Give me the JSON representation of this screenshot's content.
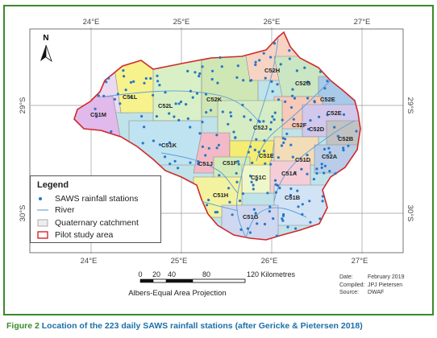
{
  "map": {
    "graticule_top": [
      "24°E",
      "25°E",
      "26°E",
      "27°E"
    ],
    "graticule_bottom": [
      "24°E",
      "25°E",
      "26°E",
      "27°E"
    ],
    "graticule_left": [
      "29°S",
      "30°S"
    ],
    "graticule_right": [
      "29°S",
      "30°S"
    ],
    "north_label": "N",
    "catchments": [
      "C52H",
      "C52G",
      "C51L",
      "C52L",
      "C52K",
      "C52E",
      "C52E",
      "C51M",
      "C52F",
      "C52J",
      "C52D",
      "C52B",
      "C51K",
      "C51E",
      "C51D",
      "C52A",
      "C51J",
      "C51F",
      "C51C",
      "C51A",
      "C51H",
      "C51B",
      "C51G"
    ],
    "colors": {
      "station": "#2577c9",
      "river": "#6aa8d8",
      "pilot_outline": "#d0282a",
      "frame": "#3a8a2a",
      "caption_text": "#1b6fa8"
    }
  },
  "legend": {
    "title": "Legend",
    "items": [
      {
        "symbol": "station-dot",
        "label": "SAWS rainfall stations"
      },
      {
        "symbol": "river-line",
        "label": "River"
      },
      {
        "symbol": "catchment-box",
        "label": "Quaternary catchment"
      },
      {
        "symbol": "pilot-box",
        "label": "Pilot study area"
      }
    ]
  },
  "scale_bar": {
    "ticks": [
      "0",
      "20",
      "40",
      "80",
      "120 Kilometres"
    ],
    "projection": "Albers-Equal Area Projection"
  },
  "meta": {
    "rows": [
      {
        "key": "Date:",
        "value": "February 2019"
      },
      {
        "key": "Compiled:",
        "value": "JPJ Pietersen"
      },
      {
        "key": "Source:",
        "value": "DWAF"
      }
    ]
  },
  "caption": {
    "figure": "Figure 2",
    "text": "Location of the 223 daily SAWS rainfall stations (after Gericke & Pietersen 2018)"
  }
}
